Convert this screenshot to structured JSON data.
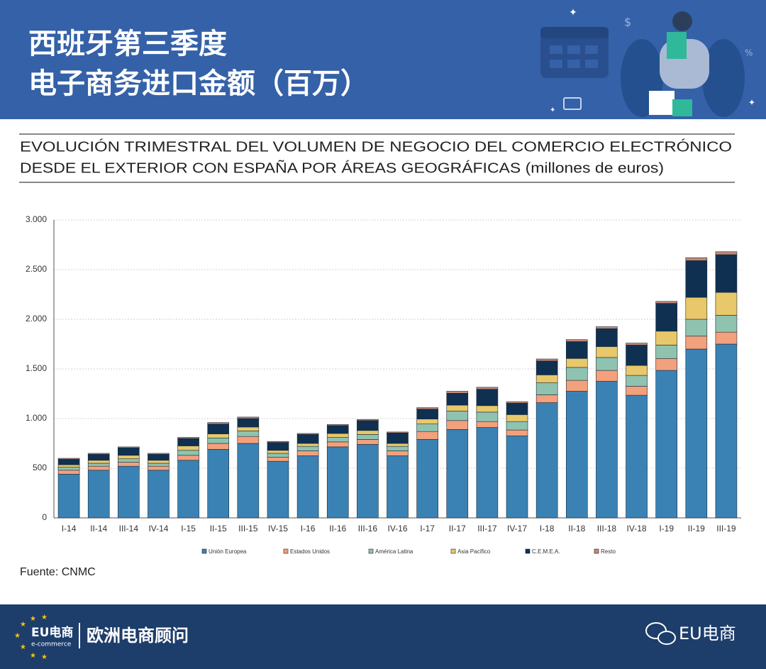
{
  "header": {
    "title_lines": [
      "西班牙第三季度",
      "电子商务进口金额（百万）"
    ]
  },
  "chart_data": {
    "type": "stacked_bar",
    "title_lines": [
      "EVOLUCIÓN TRIMESTRAL DEL VOLUMEN DE NEGOCIO DEL COMERCIO ELECTRÓNICO",
      "DESDE EL EXTERIOR CON ESPAÑA POR ÁREAS GEOGRÁFICAS (millones de euros)"
    ],
    "categories": [
      "I-14",
      "II-14",
      "III-14",
      "IV-14",
      "I-15",
      "II-15",
      "III-15",
      "IV-15",
      "I-16",
      "II-16",
      "III-16",
      "IV-16",
      "I-17",
      "II-17",
      "III-17",
      "IV-17",
      "I-18",
      "II-18",
      "III-18",
      "IV-18",
      "I-19",
      "II-19",
      "III-19"
    ],
    "series": [
      {
        "name": "Unión Europea",
        "color": "#3b82b4",
        "values": [
          440,
          480,
          520,
          480,
          580,
          690,
          750,
          570,
          625,
          715,
          740,
          625,
          790,
          890,
          910,
          825,
          1160,
          1275,
          1375,
          1235,
          1485,
          1700,
          1750
        ]
      },
      {
        "name": "Estados Unidos",
        "color": "#f3a07c",
        "values": [
          40,
          40,
          40,
          40,
          50,
          60,
          70,
          40,
          50,
          50,
          50,
          50,
          80,
          90,
          60,
          60,
          80,
          110,
          110,
          90,
          120,
          130,
          120
        ]
      },
      {
        "name": "América Latina",
        "color": "#8fc3b0",
        "values": [
          30,
          30,
          35,
          30,
          50,
          55,
          55,
          40,
          45,
          45,
          50,
          45,
          75,
          95,
          95,
          85,
          120,
          130,
          130,
          110,
          135,
          170,
          170
        ]
      },
      {
        "name": "Asia Pacífico",
        "color": "#e8c86a",
        "values": [
          25,
          30,
          35,
          30,
          45,
          40,
          40,
          30,
          30,
          40,
          40,
          30,
          50,
          60,
          65,
          70,
          80,
          90,
          110,
          100,
          140,
          220,
          230
        ]
      },
      {
        "name": "C.E.M.E.A.",
        "color": "#0f3050",
        "values": [
          55,
          60,
          75,
          60,
          75,
          100,
          85,
          80,
          90,
          80,
          100,
          105,
          100,
          120,
          165,
          115,
          140,
          170,
          180,
          205,
          280,
          370,
          380
        ]
      },
      {
        "name": "Resto",
        "color": "#c48878",
        "values": [
          10,
          10,
          10,
          10,
          10,
          15,
          15,
          10,
          10,
          10,
          10,
          10,
          15,
          20,
          20,
          15,
          20,
          20,
          20,
          20,
          20,
          30,
          30
        ]
      }
    ],
    "ylim": [
      0,
      3000
    ],
    "yticks": [
      0,
      500,
      {
        "value": 1000,
        "label": "1.000"
      },
      {
        "value": 1500,
        "label": "1.500"
      },
      {
        "value": 2000,
        "label": "2.000"
      },
      {
        "value": 2500,
        "label": "2.500"
      },
      {
        "value": 3000,
        "label": "3.000"
      }
    ],
    "grid": true,
    "legend": "bottom",
    "source": "Fuente: CNMC"
  },
  "footer": {
    "logo": "EU电商",
    "logo_sub": "e-commerce",
    "brand": "欧洲电商顾问",
    "account": "EU电商"
  }
}
